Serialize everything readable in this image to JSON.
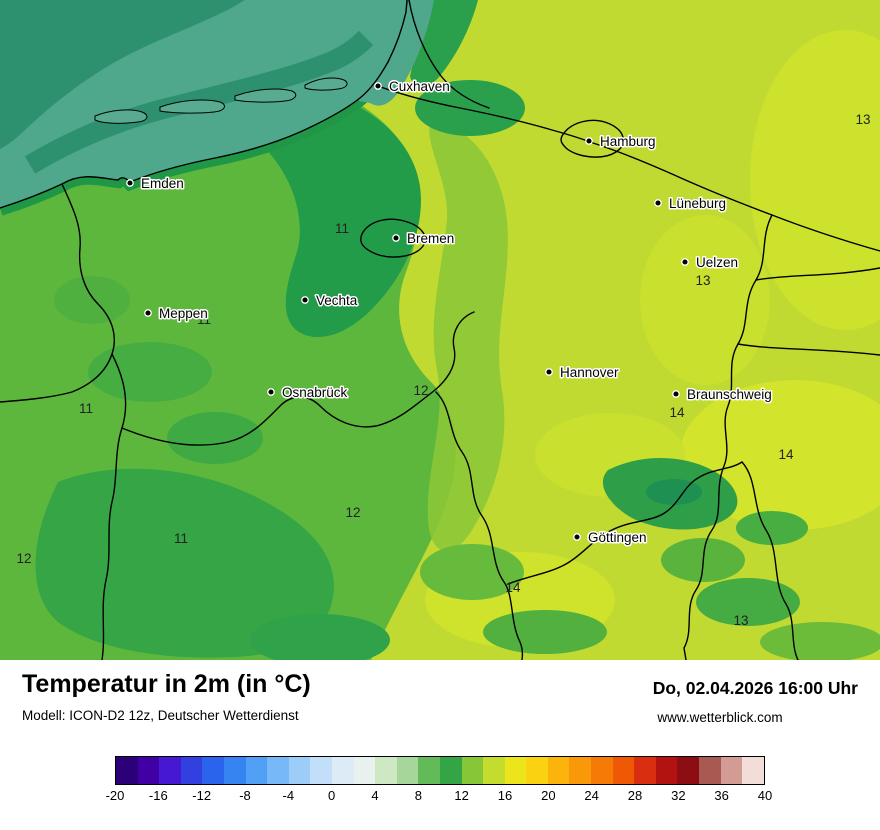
{
  "header": {
    "title": "Temperatur in 2m (in °C)",
    "model": "Modell: ICON-D2 12z, Deutscher Wetterdienst",
    "datetime": "Do, 02.04.2026 16:00 Uhr",
    "website": "www.wetterblick.com"
  },
  "map_colors": {
    "base13": "#c1da32",
    "green12": "#5eb73d",
    "green11": "#35a546",
    "green10": "#239c49",
    "green9": "#1f9747",
    "sea": "#4fa78c"
  },
  "map": {
    "cities": [
      {
        "name": "Cuxhaven"
      },
      {
        "name": "Hamburg"
      },
      {
        "name": "Emden"
      },
      {
        "name": "Lüneburg"
      },
      {
        "name": "Bremen"
      },
      {
        "name": "Uelzen"
      },
      {
        "name": "Vechta"
      },
      {
        "name": "Meppen"
      },
      {
        "name": "Hannover"
      },
      {
        "name": "Osnabrück"
      },
      {
        "name": "Braunschweig"
      },
      {
        "name": "Göttingen"
      }
    ],
    "temps": [
      {
        "value": "13"
      },
      {
        "value": "11"
      },
      {
        "value": "13"
      },
      {
        "value": "11"
      },
      {
        "value": "11"
      },
      {
        "value": "12"
      },
      {
        "value": "14"
      },
      {
        "value": "14"
      },
      {
        "value": "12"
      },
      {
        "value": "11"
      },
      {
        "value": "12"
      },
      {
        "value": "14"
      },
      {
        "value": "13"
      }
    ]
  },
  "legend": {
    "ticks": [
      "-20",
      "-16",
      "-12",
      "-8",
      "-4",
      "0",
      "4",
      "8",
      "12",
      "16",
      "20",
      "24",
      "28",
      "32",
      "36",
      "40"
    ],
    "colors": [
      "#2c0078",
      "#4100a4",
      "#4618d2",
      "#3340e0",
      "#2a64ec",
      "#3584f2",
      "#52a0f5",
      "#76b8f8",
      "#9ccdf9",
      "#c2def8",
      "#dcebf6",
      "#e9f1ee",
      "#cfe8c4",
      "#a6d69a",
      "#62bb58",
      "#33a546",
      "#86c637",
      "#c3dc2d",
      "#ece51c",
      "#fbd211",
      "#fcb40c",
      "#f99808",
      "#f67a06",
      "#ef5804",
      "#d92f10",
      "#b31310",
      "#8c0e12",
      "#a85a52",
      "#d29b93",
      "#f2ddd8"
    ]
  }
}
